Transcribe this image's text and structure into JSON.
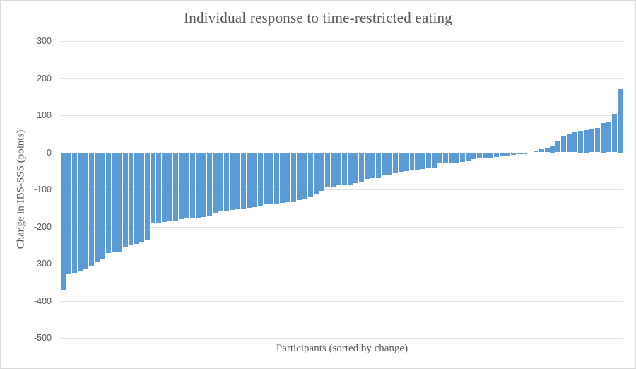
{
  "figure": {
    "title": "Individual response to time-restricted eating",
    "x_axis_title": "Participants (sorted by change)",
    "y_axis_title": "Change in IBS-SSS (points)"
  },
  "colors": {
    "bar": "#5B9BD5",
    "text": "#595959",
    "gridline": "#e2e2e2",
    "background": "#ffffff",
    "border": "#d9d9d9"
  },
  "chart_data": {
    "type": "bar",
    "title": "Individual response to time-restricted eating",
    "xlabel": "Participants (sorted by change)",
    "ylabel": "Change in IBS-SSS (points)",
    "x_description": "100 individual participants, one bar each, sorted ascending by change; no x tick labels shown",
    "ylim": [
      -500,
      300
    ],
    "yticks": [
      300,
      200,
      100,
      0,
      -100,
      -200,
      -300,
      -400,
      -500
    ],
    "grid": true,
    "legend": false,
    "values": [
      -370,
      -327,
      -324,
      -321,
      -315,
      -308,
      -295,
      -289,
      -272,
      -270,
      -268,
      -254,
      -251,
      -247,
      -242,
      -235,
      -192,
      -190,
      -188,
      -186,
      -183,
      -179,
      -177,
      -176,
      -176,
      -175,
      -170,
      -163,
      -159,
      -157,
      -156,
      -152,
      -151,
      -150,
      -147,
      -143,
      -139,
      -138,
      -138,
      -137,
      -135,
      -134,
      -128,
      -124,
      -119,
      -114,
      -104,
      -93,
      -92,
      -89,
      -88,
      -86,
      -82,
      -80,
      -72,
      -70,
      -70,
      -61,
      -61,
      -57,
      -55,
      -50,
      -48,
      -47,
      -45,
      -42,
      -40,
      -30,
      -30,
      -29,
      -28,
      -25,
      -24,
      -18,
      -17,
      -15,
      -14,
      -12,
      -11,
      -8,
      -7,
      -5,
      -4,
      -1,
      4,
      8,
      12,
      19,
      29,
      44,
      48,
      55,
      58,
      60,
      62,
      65,
      79,
      83,
      104,
      170
    ]
  }
}
